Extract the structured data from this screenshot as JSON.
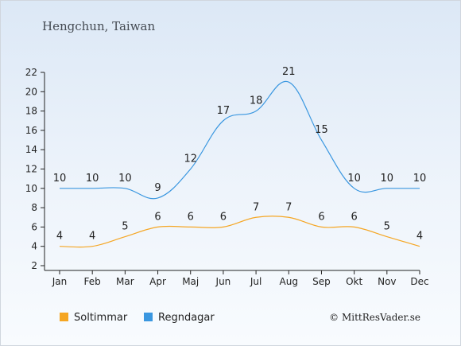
{
  "chart_data": {
    "type": "line",
    "title": "Hengchun, Taiwan",
    "categories": [
      "Jan",
      "Feb",
      "Mar",
      "Apr",
      "Maj",
      "Jun",
      "Jul",
      "Aug",
      "Sep",
      "Okt",
      "Nov",
      "Dec"
    ],
    "series": [
      {
        "name": "Soltimmar",
        "color": "#f5a623",
        "values": [
          4,
          4,
          5,
          6,
          6,
          6,
          7,
          7,
          6,
          6,
          5,
          4
        ]
      },
      {
        "name": "Regndagar",
        "color": "#3a97e0",
        "values": [
          10,
          10,
          10,
          9,
          12,
          17,
          18,
          21,
          15,
          10,
          10,
          10
        ]
      }
    ],
    "ylim": [
      2,
      22
    ],
    "yticks": [
      2,
      4,
      6,
      8,
      10,
      12,
      14,
      16,
      18,
      20,
      22
    ],
    "grid": false,
    "legend": "bottom-left"
  },
  "credit": "© MittResVader.se"
}
